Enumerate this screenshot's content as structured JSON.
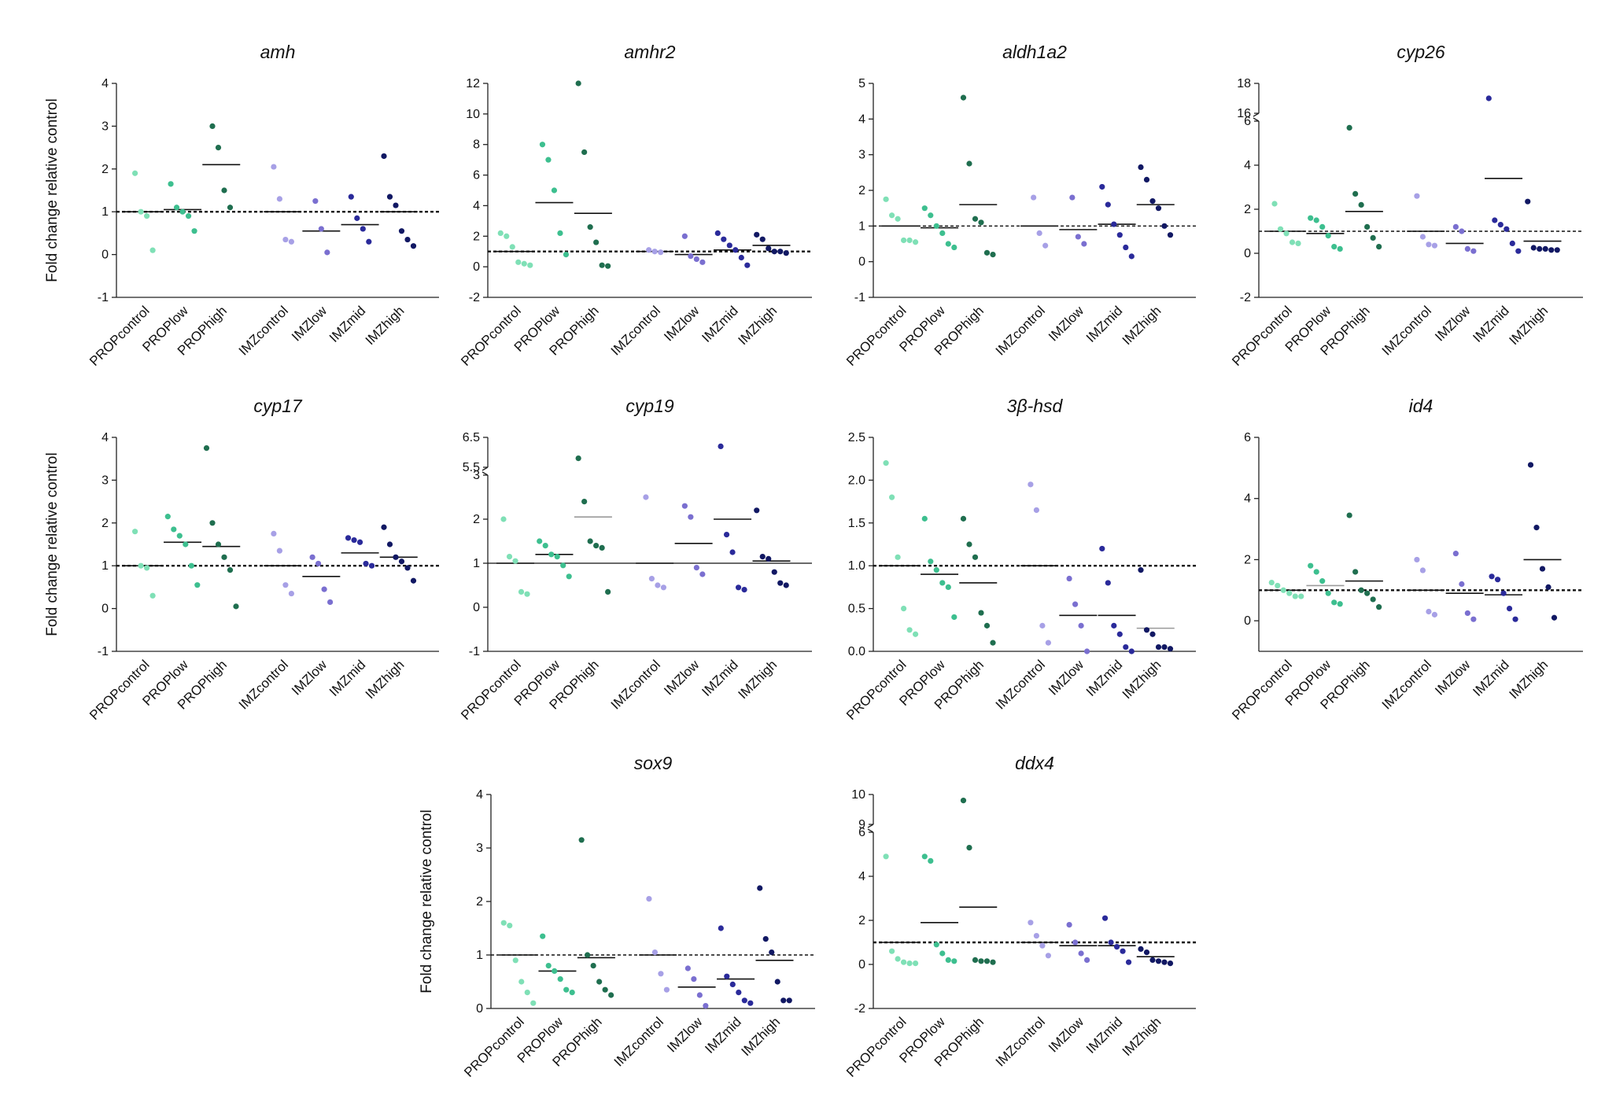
{
  "figure": {
    "ylabel": "Fold change relative control",
    "categories": [
      "PROPcontrol",
      "PROPlow",
      "PROPhigh",
      "IMZcontrol",
      "IMZlow",
      "IMZmid",
      "IMZhigh"
    ],
    "colors": [
      "#7fe0b6",
      "#3dbf8f",
      "#1f6e4f",
      "#a7a0e6",
      "#7a6fd0",
      "#2a2a9a",
      "#111863"
    ]
  },
  "chart_data": [
    {
      "type": "scatter",
      "title": "amh",
      "ylabel": "Fold change relative control",
      "ylim": [
        -1,
        4
      ],
      "yticks": [
        "-1",
        "0",
        "1",
        "2",
        "3",
        "4"
      ],
      "ref_style": "dashed-bold",
      "series": [
        {
          "name": "PROPcontrol",
          "mean": 1.0,
          "values": [
            1.9,
            1.0,
            0.9,
            0.1
          ]
        },
        {
          "name": "PROPlow",
          "mean": 1.05,
          "values": [
            1.65,
            1.1,
            1.0,
            0.9,
            0.55
          ]
        },
        {
          "name": "PROPhigh",
          "mean": 2.1,
          "values": [
            3.0,
            2.5,
            1.5,
            1.1
          ]
        },
        {
          "name": "IMZcontrol",
          "mean": 1.0,
          "values": [
            2.05,
            1.3,
            0.35,
            0.3
          ]
        },
        {
          "name": "IMZlow",
          "mean": 0.55,
          "values": [
            1.25,
            0.6,
            0.05
          ]
        },
        {
          "name": "IMZmid",
          "mean": 0.7,
          "values": [
            1.35,
            0.85,
            0.6,
            0.3
          ]
        },
        {
          "name": "IMZhigh",
          "mean": 1.0,
          "values": [
            2.3,
            1.35,
            1.15,
            0.55,
            0.35,
            0.2
          ]
        }
      ]
    },
    {
      "type": "scatter",
      "title": "amhr2",
      "ylabel": "",
      "ylim": [
        -2,
        12
      ],
      "yticks": [
        "-2",
        "0",
        "2",
        "4",
        "6",
        "8",
        "10",
        "12"
      ],
      "ref_style": "dashed-bold",
      "series": [
        {
          "name": "PROPcontrol",
          "mean": 1.0,
          "values": [
            2.2,
            2.0,
            1.3,
            0.3,
            0.2,
            0.1
          ]
        },
        {
          "name": "PROPlow",
          "mean": 4.2,
          "values": [
            8.0,
            7.0,
            5.0,
            2.2,
            0.8
          ]
        },
        {
          "name": "PROPhigh",
          "mean": 3.5,
          "values": [
            12.0,
            7.5,
            2.6,
            1.6,
            0.1,
            0.05
          ]
        },
        {
          "name": "IMZcontrol",
          "mean": 1.0,
          "values": [
            1.1,
            1.0,
            0.95
          ]
        },
        {
          "name": "IMZlow",
          "mean": 0.8,
          "values": [
            2.0,
            0.7,
            0.5,
            0.3
          ]
        },
        {
          "name": "IMZmid",
          "mean": 1.1,
          "values": [
            2.2,
            1.8,
            1.4,
            1.1,
            0.6,
            0.1
          ]
        },
        {
          "name": "IMZhigh",
          "mean": 1.4,
          "values": [
            2.1,
            1.8,
            1.2,
            1.0,
            1.0,
            0.9
          ]
        }
      ]
    },
    {
      "type": "scatter",
      "title": "aldh1a2",
      "ylabel": "",
      "ylim": [
        -1,
        5
      ],
      "yticks": [
        "-1",
        "0",
        "1",
        "2",
        "3",
        "4",
        "5"
      ],
      "ref_style": "dashed-thin",
      "series": [
        {
          "name": "PROPcontrol",
          "mean": 1.0,
          "values": [
            1.75,
            1.3,
            1.2,
            0.6,
            0.6,
            0.55
          ]
        },
        {
          "name": "PROPlow",
          "mean": 0.95,
          "values": [
            1.5,
            1.3,
            1.0,
            0.8,
            0.5,
            0.4
          ]
        },
        {
          "name": "PROPhigh",
          "mean": 1.6,
          "values": [
            4.6,
            2.75,
            1.2,
            1.1,
            0.25,
            0.2
          ]
        },
        {
          "name": "IMZcontrol",
          "mean": 1.0,
          "values": [
            1.8,
            0.8,
            0.45
          ]
        },
        {
          "name": "IMZlow",
          "mean": 0.9,
          "values": [
            1.8,
            0.7,
            0.5
          ]
        },
        {
          "name": "IMZmid",
          "mean": 1.05,
          "values": [
            2.1,
            1.6,
            1.05,
            0.75,
            0.4,
            0.15
          ]
        },
        {
          "name": "IMZhigh",
          "mean": 1.6,
          "values": [
            2.65,
            2.3,
            1.7,
            1.5,
            1.0,
            0.75
          ]
        }
      ]
    },
    {
      "type": "scatter",
      "title": "cyp26",
      "ylabel": "",
      "ylim": [
        -2,
        6
      ],
      "yticks": [
        "-2",
        "0",
        "2",
        "4",
        "6"
      ],
      "ref_style": "dashed-thin",
      "axis_break": {
        "upper_ticks": [
          "16",
          "18"
        ],
        "upper_ylim": [
          16,
          18
        ]
      },
      "series": [
        {
          "name": "PROPcontrol",
          "mean": 1.0,
          "values": [
            2.25,
            1.1,
            0.9,
            0.5,
            0.45
          ]
        },
        {
          "name": "PROPlow",
          "mean": 0.9,
          "values": [
            1.6,
            1.5,
            1.2,
            0.8,
            0.3,
            0.2
          ]
        },
        {
          "name": "PROPhigh",
          "mean": 1.9,
          "values": [
            5.7,
            2.7,
            2.2,
            1.2,
            0.7,
            0.3
          ]
        },
        {
          "name": "IMZcontrol",
          "mean": 1.0,
          "values": [
            2.6,
            0.75,
            0.4,
            0.35
          ]
        },
        {
          "name": "IMZlow",
          "mean": 0.45,
          "values": [
            1.2,
            1.0,
            0.2,
            0.1
          ]
        },
        {
          "name": "IMZmid",
          "mean": 3.4,
          "values": [
            17.0,
            1.5,
            1.3,
            1.1,
            0.45,
            0.1
          ]
        },
        {
          "name": "IMZhigh",
          "mean": 0.55,
          "values": [
            2.35,
            0.25,
            0.2,
            0.2,
            0.15,
            0.15
          ]
        }
      ]
    },
    {
      "type": "scatter",
      "title": "cyp17",
      "ylabel": "Fold change relative control",
      "ylim": [
        -1,
        4
      ],
      "yticks": [
        "-1",
        "0",
        "1",
        "2",
        "3",
        "4"
      ],
      "ref_style": "dashed-bold",
      "series": [
        {
          "name": "PROPcontrol",
          "mean": 1.0,
          "values": [
            1.8,
            1.0,
            0.95,
            0.3
          ]
        },
        {
          "name": "PROPlow",
          "mean": 1.55,
          "values": [
            2.15,
            1.85,
            1.7,
            1.5,
            1.0,
            0.55
          ]
        },
        {
          "name": "PROPhigh",
          "mean": 1.45,
          "values": [
            3.75,
            2.0,
            1.5,
            1.2,
            0.9,
            0.05
          ]
        },
        {
          "name": "IMZcontrol",
          "mean": 1.0,
          "values": [
            1.75,
            1.35,
            0.55,
            0.35
          ]
        },
        {
          "name": "IMZlow",
          "mean": 0.75,
          "values": [
            1.2,
            1.05,
            0.45,
            0.15
          ]
        },
        {
          "name": "IMZmid",
          "mean": 1.3,
          "values": [
            1.65,
            1.6,
            1.55,
            1.05,
            1.0
          ]
        },
        {
          "name": "IMZhigh",
          "mean": 1.2,
          "values": [
            1.9,
            1.5,
            1.2,
            1.1,
            0.95,
            0.65
          ]
        }
      ]
    },
    {
      "type": "scatter",
      "title": "cyp19",
      "ylabel": "",
      "ylim": [
        -1,
        3
      ],
      "yticks": [
        "-1",
        "0",
        "1",
        "2",
        "3"
      ],
      "ref_style": "solid-thin",
      "axis_break": {
        "upper_ticks": [
          "5.5",
          "6.5"
        ],
        "upper_ylim": [
          5.5,
          6.5
        ]
      },
      "series": [
        {
          "name": "PROPcontrol",
          "mean": 1.0,
          "values": [
            2.0,
            1.15,
            1.05,
            0.35,
            0.3
          ]
        },
        {
          "name": "PROPlow",
          "mean": 1.2,
          "values": [
            1.5,
            1.4,
            1.2,
            1.15,
            0.95,
            0.7
          ]
        },
        {
          "name": "PROPhigh",
          "mean": 2.05,
          "values": [
            5.8,
            2.4,
            1.5,
            1.4,
            1.35,
            0.35
          ]
        },
        {
          "name": "IMZcontrol",
          "mean": 1.0,
          "values": [
            2.5,
            0.65,
            0.5,
            0.45
          ]
        },
        {
          "name": "IMZlow",
          "mean": 1.45,
          "values": [
            2.3,
            2.05,
            0.9,
            0.75
          ]
        },
        {
          "name": "IMZmid",
          "mean": 2.0,
          "values": [
            6.2,
            1.65,
            1.25,
            0.45,
            0.4
          ]
        },
        {
          "name": "IMZhigh",
          "mean": 1.05,
          "values": [
            2.2,
            1.15,
            1.1,
            0.8,
            0.55,
            0.5
          ]
        }
      ]
    },
    {
      "type": "scatter",
      "title": "3β-hsd",
      "ylabel": "",
      "ylim": [
        0,
        2.5
      ],
      "yticks": [
        "0.0",
        "0.5",
        "1.0",
        "1.5",
        "2.0",
        "2.5"
      ],
      "ref_style": "dashed-bold",
      "series": [
        {
          "name": "PROPcontrol",
          "mean": 1.0,
          "values": [
            2.2,
            1.8,
            1.1,
            0.5,
            0.25,
            0.2
          ]
        },
        {
          "name": "PROPlow",
          "mean": 0.9,
          "values": [
            1.55,
            1.05,
            0.95,
            0.8,
            0.75,
            0.4
          ]
        },
        {
          "name": "PROPhigh",
          "mean": 0.8,
          "values": [
            1.55,
            1.25,
            1.1,
            0.45,
            0.3,
            0.1
          ]
        },
        {
          "name": "IMZcontrol",
          "mean": 1.0,
          "values": [
            1.95,
            1.65,
            0.3,
            0.1
          ]
        },
        {
          "name": "IMZlow",
          "mean": 0.42,
          "values": [
            0.85,
            0.55,
            0.3,
            0.0
          ]
        },
        {
          "name": "IMZmid",
          "mean": 0.42,
          "values": [
            1.2,
            0.8,
            0.3,
            0.2,
            0.05,
            0.0
          ]
        },
        {
          "name": "IMZhigh",
          "mean": 0.27,
          "values": [
            0.95,
            0.25,
            0.2,
            0.05,
            0.05,
            0.03
          ]
        }
      ]
    },
    {
      "type": "scatter",
      "title": "id4",
      "ylabel": "",
      "ylim": [
        -1,
        6
      ],
      "yticks": [
        "0",
        "2",
        "4",
        "6"
      ],
      "ref_style": "dashed-bold",
      "series": [
        {
          "name": "PROPcontrol",
          "mean": 1.0,
          "values": [
            1.25,
            1.15,
            1.0,
            0.9,
            0.8,
            0.8
          ]
        },
        {
          "name": "PROPlow",
          "mean": 1.15,
          "values": [
            1.8,
            1.6,
            1.3,
            0.9,
            0.6,
            0.55
          ]
        },
        {
          "name": "PROPhigh",
          "mean": 1.3,
          "values": [
            3.45,
            1.6,
            1.0,
            0.9,
            0.7,
            0.45
          ]
        },
        {
          "name": "IMZcontrol",
          "mean": 1.0,
          "values": [
            2.0,
            1.65,
            0.3,
            0.2
          ]
        },
        {
          "name": "IMZlow",
          "mean": 0.9,
          "values": [
            2.2,
            1.2,
            0.25,
            0.05
          ]
        },
        {
          "name": "IMZmid",
          "mean": 0.85,
          "values": [
            1.45,
            1.35,
            0.9,
            0.4,
            0.05
          ]
        },
        {
          "name": "IMZhigh",
          "mean": 2.0,
          "values": [
            5.1,
            3.05,
            1.7,
            1.1,
            0.1
          ]
        }
      ]
    },
    {
      "type": "scatter",
      "title": "sox9",
      "ylabel": "Fold change relative control",
      "ylim": [
        0,
        4
      ],
      "yticks": [
        "0",
        "1",
        "2",
        "3",
        "4"
      ],
      "ref_style": "dashed-thin",
      "series": [
        {
          "name": "PROPcontrol",
          "mean": 1.0,
          "values": [
            1.6,
            1.55,
            0.9,
            0.5,
            0.3,
            0.1
          ]
        },
        {
          "name": "PROPlow",
          "mean": 0.7,
          "values": [
            1.35,
            0.8,
            0.7,
            0.55,
            0.35,
            0.3
          ]
        },
        {
          "name": "PROPhigh",
          "mean": 0.95,
          "values": [
            3.15,
            1.0,
            0.8,
            0.5,
            0.35,
            0.25
          ]
        },
        {
          "name": "IMZcontrol",
          "mean": 1.0,
          "values": [
            2.05,
            1.05,
            0.65,
            0.35
          ]
        },
        {
          "name": "IMZlow",
          "mean": 0.4,
          "values": [
            0.75,
            0.55,
            0.25,
            0.05
          ]
        },
        {
          "name": "IMZmid",
          "mean": 0.55,
          "values": [
            1.5,
            0.6,
            0.45,
            0.3,
            0.15,
            0.1
          ]
        },
        {
          "name": "IMZhigh",
          "mean": 0.9,
          "values": [
            2.25,
            1.3,
            1.05,
            0.5,
            0.15,
            0.15
          ]
        }
      ]
    },
    {
      "type": "scatter",
      "title": "ddx4",
      "ylabel": "",
      "ylim": [
        -2,
        6
      ],
      "yticks": [
        "-2",
        "0",
        "2",
        "4",
        "6"
      ],
      "ref_style": "dashed-bold",
      "axis_break": {
        "upper_ticks": [
          "9",
          "10"
        ],
        "upper_ylim": [
          9,
          10
        ]
      },
      "series": [
        {
          "name": "PROPcontrol",
          "mean": 1.0,
          "values": [
            4.9,
            0.6,
            0.25,
            0.1,
            0.05,
            0.05
          ]
        },
        {
          "name": "PROPlow",
          "mean": 1.9,
          "values": [
            4.9,
            4.7,
            0.9,
            0.5,
            0.2,
            0.15
          ]
        },
        {
          "name": "PROPhigh",
          "mean": 2.6,
          "values": [
            9.8,
            5.3,
            0.2,
            0.15,
            0.15,
            0.1
          ]
        },
        {
          "name": "IMZcontrol",
          "mean": 1.0,
          "values": [
            1.9,
            1.3,
            0.85,
            0.4
          ]
        },
        {
          "name": "IMZlow",
          "mean": 0.85,
          "values": [
            1.8,
            1.0,
            0.5,
            0.2
          ]
        },
        {
          "name": "IMZmid",
          "mean": 0.85,
          "values": [
            2.1,
            1.0,
            0.8,
            0.6,
            0.1
          ]
        },
        {
          "name": "IMZhigh",
          "mean": 0.35,
          "values": [
            0.7,
            0.55,
            0.2,
            0.15,
            0.1,
            0.05
          ]
        }
      ]
    }
  ]
}
